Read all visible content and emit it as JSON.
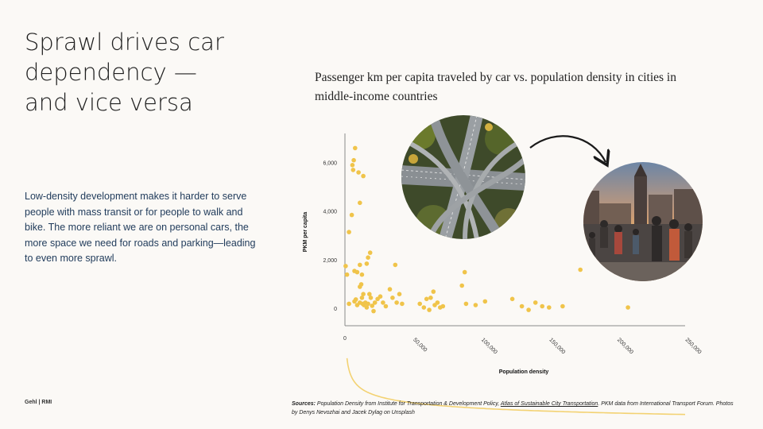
{
  "slide": {
    "title_lines": [
      "Sprawl drives car",
      "dependency —",
      "and vice versa"
    ],
    "body": "Low-density development makes it harder to serve people with mass transit or for people to walk and bike. The more reliant we are on personal cars, the more space we need for roads and parking—leading to even more sprawl.",
    "brand": "Gehl | RMI"
  },
  "chart_title": "Passenger km per capita traveled by car vs. population density in cities in middle-income countries",
  "sources": {
    "label": "Sources:",
    "text_before_link": " Population Density from Institute for Transportation & Development Policy, ",
    "link_text": "Atlas of Sustainable City Transportation",
    "text_after_link": ". PKM data from International Transport Forum. Photos by Denys Nevozhai and Jacek Dylag on Unsplash"
  },
  "colors": {
    "points": "#f0c44a",
    "trend": "#f3d272",
    "axis": "#8a8a8a",
    "arrow": "#1a1a1a"
  },
  "photos": [
    {
      "name": "highway-interchange-photo",
      "depicts": "aerial view of highway interchange"
    },
    {
      "name": "pedestrian-square-photo",
      "depicts": "crowded pedestrian old-town square at sunset"
    }
  ],
  "chart_data": {
    "type": "scatter",
    "title": "",
    "xlabel": "Population density",
    "ylabel": "PKM per capita",
    "xlim": [
      0,
      250000
    ],
    "ylim": [
      -700,
      7200
    ],
    "x_ticks": [
      0,
      50000,
      100000,
      150000,
      200000,
      250000
    ],
    "x_tick_labels": [
      "0",
      "50,000",
      "100,000",
      "150,000",
      "200,000",
      "250,000"
    ],
    "y_ticks": [
      0,
      2000,
      4000,
      6000
    ],
    "y_tick_labels": [
      "0",
      "2,000",
      "4,000",
      "6,000"
    ],
    "grid": false,
    "trendline": {
      "type": "power",
      "label": ""
    },
    "points": [
      [
        7500,
        6600
      ],
      [
        5500,
        5900
      ],
      [
        6500,
        6100
      ],
      [
        6000,
        5700
      ],
      [
        10000,
        5600
      ],
      [
        13500,
        5450
      ],
      [
        5000,
        3850
      ],
      [
        3000,
        3150
      ],
      [
        11000,
        4350
      ],
      [
        500,
        1750
      ],
      [
        1500,
        1400
      ],
      [
        9000,
        1500
      ],
      [
        12500,
        1400
      ],
      [
        16000,
        1850
      ],
      [
        17000,
        2100
      ],
      [
        18500,
        2300
      ],
      [
        11000,
        1800
      ],
      [
        7000,
        1550
      ],
      [
        3000,
        200
      ],
      [
        7000,
        300
      ],
      [
        8000,
        380
      ],
      [
        9000,
        150
      ],
      [
        11000,
        250
      ],
      [
        12500,
        450
      ],
      [
        13500,
        600
      ],
      [
        11000,
        900
      ],
      [
        12000,
        1000
      ],
      [
        13000,
        200
      ],
      [
        14000,
        150
      ],
      [
        15000,
        250
      ],
      [
        16000,
        50
      ],
      [
        17000,
        200
      ],
      [
        18000,
        600
      ],
      [
        19000,
        450
      ],
      [
        20000,
        120
      ],
      [
        21000,
        -100
      ],
      [
        22000,
        250
      ],
      [
        24000,
        400
      ],
      [
        26000,
        500
      ],
      [
        28000,
        250
      ],
      [
        30000,
        100
      ],
      [
        33000,
        800
      ],
      [
        35000,
        450
      ],
      [
        37000,
        1800
      ],
      [
        40000,
        600
      ],
      [
        42000,
        200
      ],
      [
        38000,
        250
      ],
      [
        55000,
        200
      ],
      [
        58000,
        50
      ],
      [
        60000,
        400
      ],
      [
        62000,
        -50
      ],
      [
        63000,
        450
      ],
      [
        65000,
        700
      ],
      [
        66000,
        150
      ],
      [
        68000,
        250
      ],
      [
        70000,
        50
      ],
      [
        72000,
        100
      ],
      [
        86000,
        950
      ],
      [
        88000,
        1500
      ],
      [
        89000,
        200
      ],
      [
        96000,
        150
      ],
      [
        103000,
        300
      ],
      [
        123000,
        400
      ],
      [
        130000,
        100
      ],
      [
        135000,
        -50
      ],
      [
        140000,
        250
      ],
      [
        145000,
        100
      ],
      [
        150000,
        50
      ],
      [
        160000,
        100
      ],
      [
        173000,
        1600
      ],
      [
        208000,
        50
      ]
    ]
  }
}
